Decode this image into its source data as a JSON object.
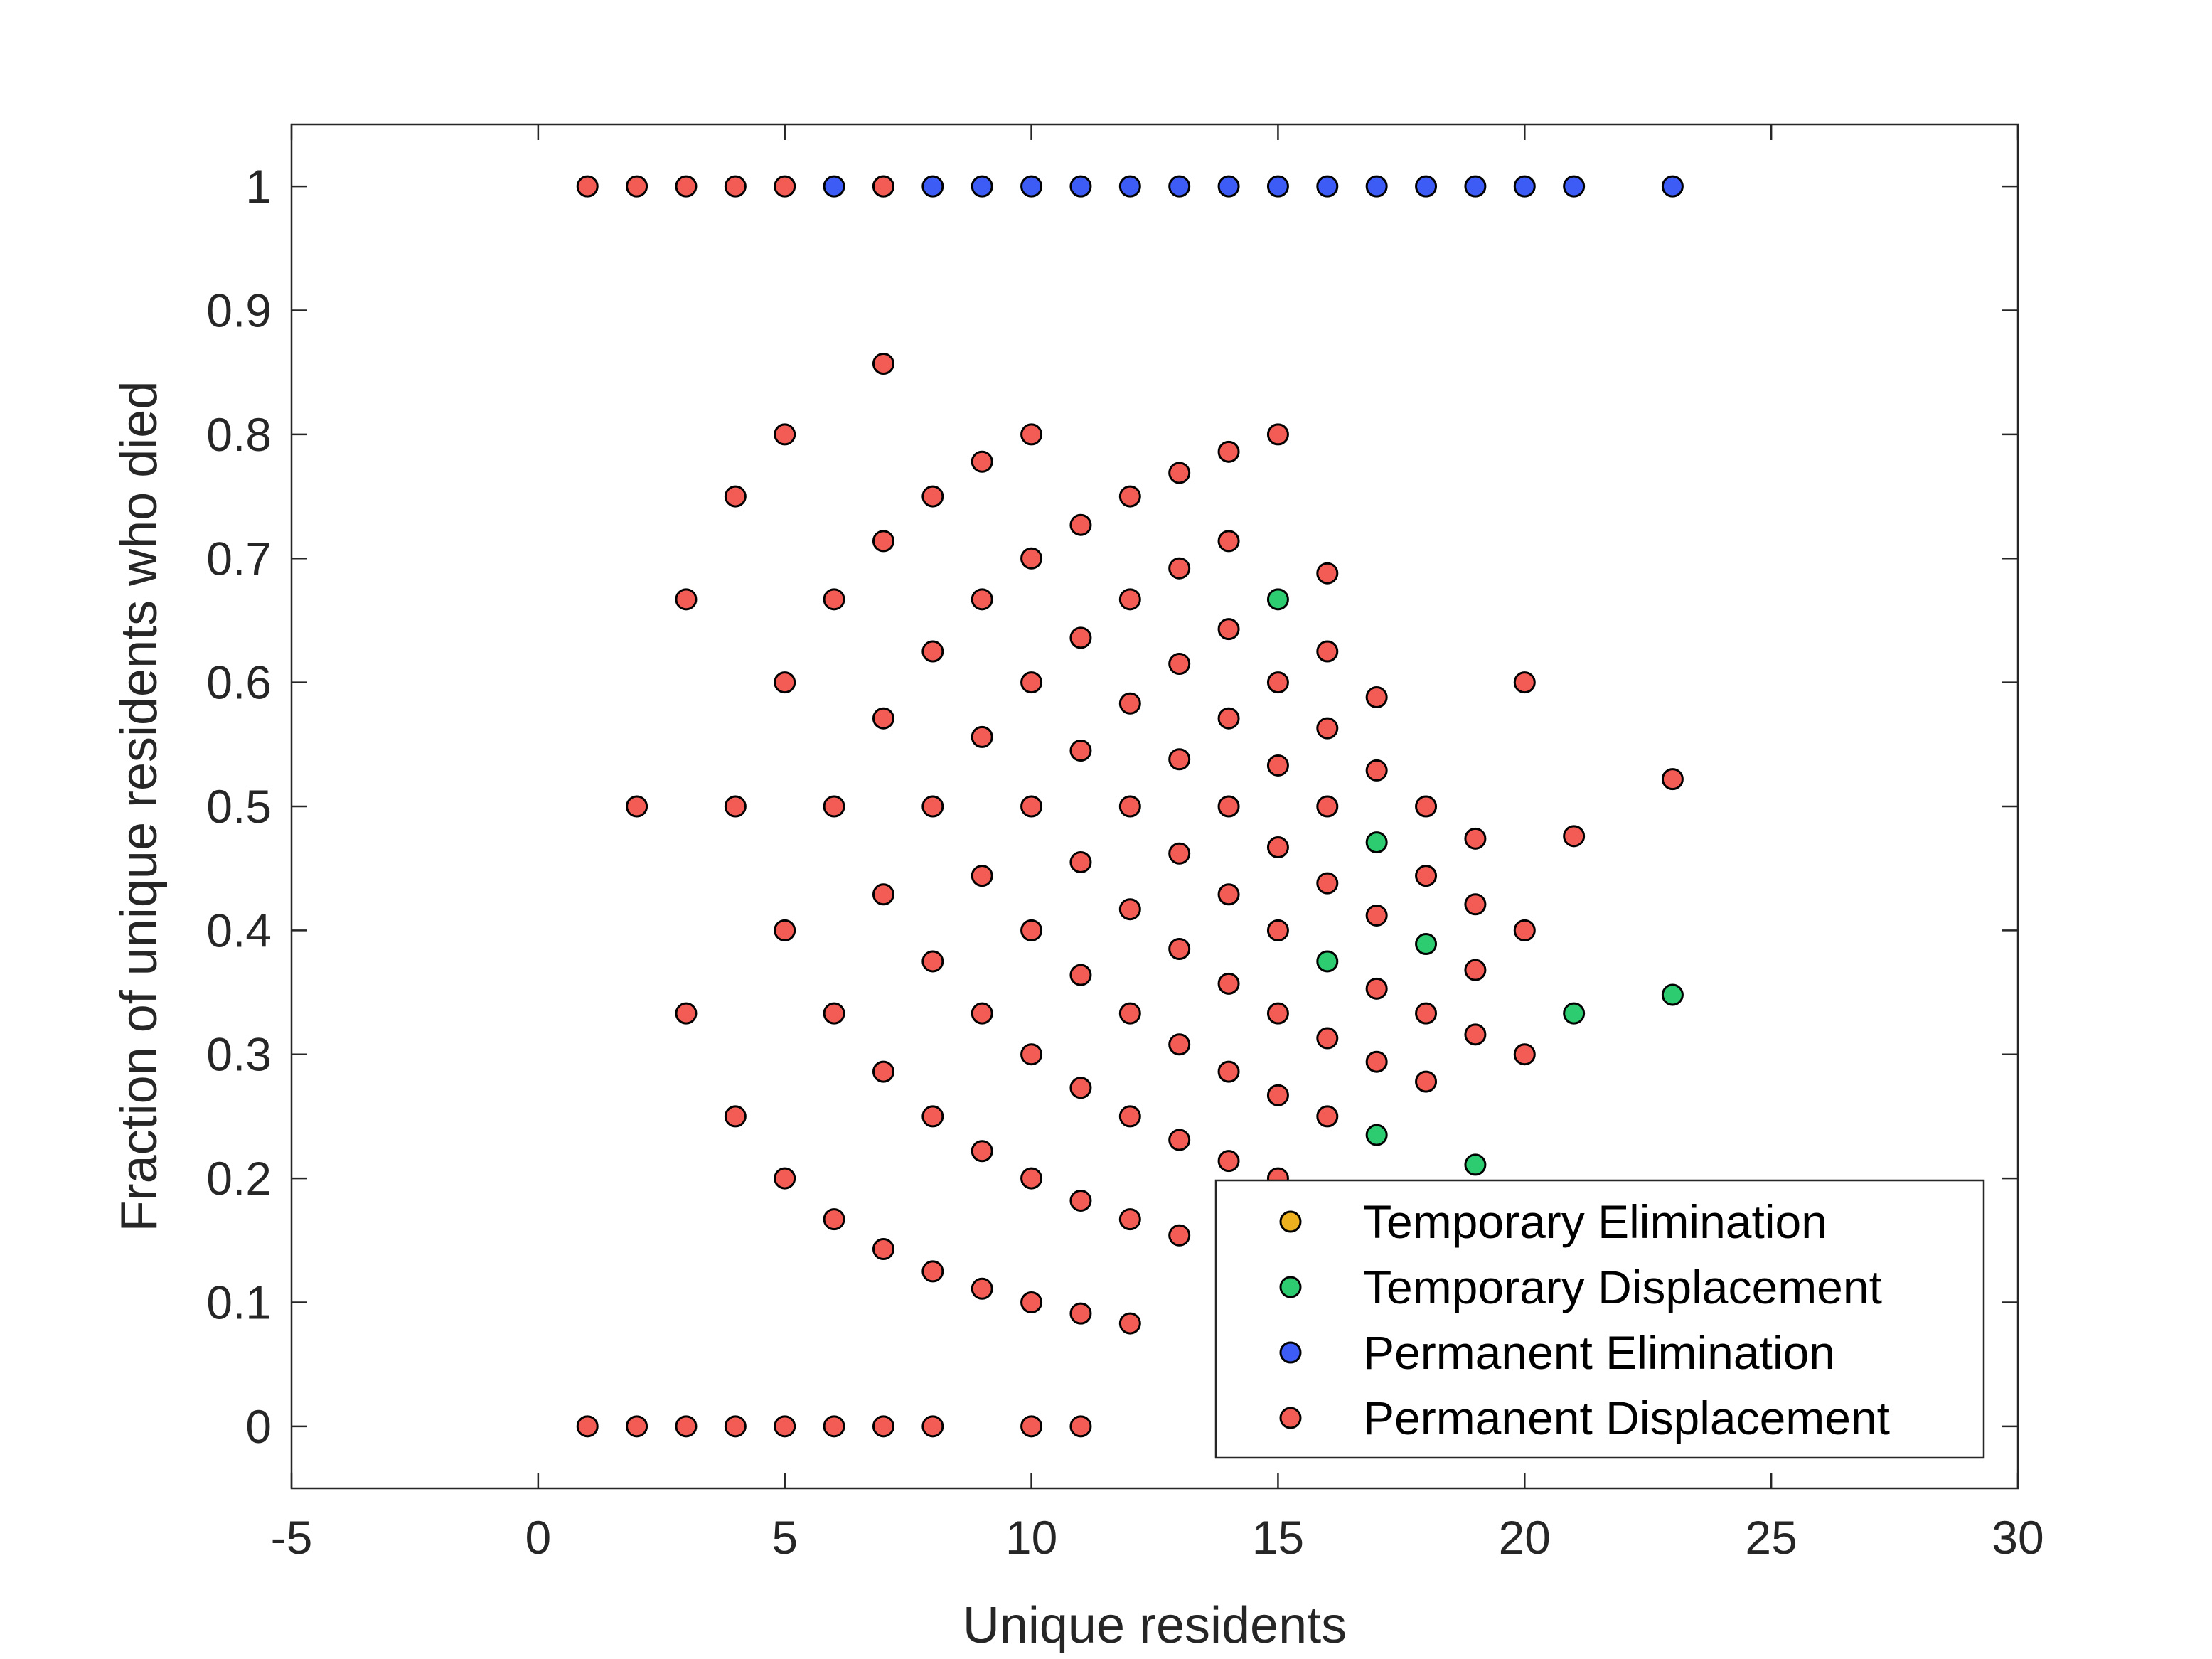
{
  "chart_data": {
    "type": "scatter",
    "xlabel": "Unique residents",
    "ylabel": "Fraction of unique residents who died",
    "xlim": [
      -5,
      30
    ],
    "ylim": [
      -0.05,
      1.05
    ],
    "xticks": [
      -5,
      0,
      5,
      10,
      15,
      20,
      25,
      30
    ],
    "yticks": [
      0,
      0.1,
      0.2,
      0.3,
      0.4,
      0.5,
      0.6,
      0.7,
      0.8,
      0.9,
      1
    ],
    "xtick_labels": [
      "-5",
      "0",
      "5",
      "10",
      "15",
      "20",
      "25",
      "30"
    ],
    "ytick_labels": [
      "0",
      "0.1",
      "0.2",
      "0.3",
      "0.4",
      "0.5",
      "0.6",
      "0.7",
      "0.8",
      "0.9",
      "1"
    ],
    "grid": false,
    "legend_position": "bottom-right",
    "series": [
      {
        "name": "Temporary Elimination",
        "color": "#EDB120",
        "points": []
      },
      {
        "name": "Temporary Displacement",
        "color": "#2ECC71",
        "points": [
          [
            15,
            0.667
          ],
          [
            16,
            0.375
          ],
          [
            17,
            0.471
          ],
          [
            17,
            0.235
          ],
          [
            18,
            0.389
          ],
          [
            19,
            0.211
          ],
          [
            21,
            0.333
          ],
          [
            23,
            0.348
          ]
        ]
      },
      {
        "name": "Permanent Elimination",
        "color": "#3D5CF5",
        "points": [
          [
            6,
            1
          ],
          [
            7,
            1
          ],
          [
            8,
            1
          ],
          [
            9,
            1
          ],
          [
            10,
            1
          ],
          [
            11,
            1
          ],
          [
            12,
            1
          ],
          [
            13,
            1
          ],
          [
            14,
            1
          ],
          [
            15,
            1
          ],
          [
            16,
            1
          ],
          [
            17,
            1
          ],
          [
            18,
            1
          ],
          [
            19,
            1
          ],
          [
            20,
            1
          ],
          [
            21,
            1
          ],
          [
            23,
            1
          ]
        ]
      },
      {
        "name": "Permanent Displacement",
        "color": "#F25C54",
        "points": [
          [
            1,
            1
          ],
          [
            2,
            1
          ],
          [
            3,
            1
          ],
          [
            4,
            1
          ],
          [
            5,
            1
          ],
          [
            7,
            1
          ],
          [
            1,
            0
          ],
          [
            2,
            0
          ],
          [
            3,
            0
          ],
          [
            4,
            0
          ],
          [
            5,
            0
          ],
          [
            6,
            0
          ],
          [
            7,
            0
          ],
          [
            8,
            0
          ],
          [
            10,
            0
          ],
          [
            11,
            0
          ],
          [
            2,
            0.5
          ],
          [
            3,
            0.667
          ],
          [
            3,
            0.333
          ],
          [
            4,
            0.75
          ],
          [
            4,
            0.5
          ],
          [
            4,
            0.25
          ],
          [
            5,
            0.8
          ],
          [
            5,
            0.6
          ],
          [
            5,
            0.4
          ],
          [
            5,
            0.2
          ],
          [
            6,
            0.667
          ],
          [
            6,
            0.5
          ],
          [
            6,
            0.333
          ],
          [
            6,
            0.167
          ],
          [
            7,
            0.857
          ],
          [
            7,
            0.714
          ],
          [
            7,
            0.571
          ],
          [
            7,
            0.429
          ],
          [
            7,
            0.286
          ],
          [
            7,
            0.143
          ],
          [
            8,
            0.75
          ],
          [
            8,
            0.625
          ],
          [
            8,
            0.5
          ],
          [
            8,
            0.375
          ],
          [
            8,
            0.25
          ],
          [
            8,
            0.125
          ],
          [
            9,
            0.778
          ],
          [
            9,
            0.667
          ],
          [
            9,
            0.556
          ],
          [
            9,
            0.444
          ],
          [
            9,
            0.333
          ],
          [
            9,
            0.222
          ],
          [
            9,
            0.111
          ],
          [
            10,
            0.8
          ],
          [
            10,
            0.7
          ],
          [
            10,
            0.6
          ],
          [
            10,
            0.5
          ],
          [
            10,
            0.4
          ],
          [
            10,
            0.3
          ],
          [
            10,
            0.2
          ],
          [
            10,
            0.1
          ],
          [
            11,
            0.727
          ],
          [
            11,
            0.636
          ],
          [
            11,
            0.545
          ],
          [
            11,
            0.455
          ],
          [
            11,
            0.364
          ],
          [
            11,
            0.273
          ],
          [
            11,
            0.182
          ],
          [
            11,
            0.091
          ],
          [
            12,
            0.75
          ],
          [
            12,
            0.667
          ],
          [
            12,
            0.583
          ],
          [
            12,
            0.5
          ],
          [
            12,
            0.417
          ],
          [
            12,
            0.333
          ],
          [
            12,
            0.25
          ],
          [
            12,
            0.167
          ],
          [
            12,
            0.083
          ],
          [
            13,
            0.769
          ],
          [
            13,
            0.692
          ],
          [
            13,
            0.615
          ],
          [
            13,
            0.538
          ],
          [
            13,
            0.462
          ],
          [
            13,
            0.385
          ],
          [
            13,
            0.308
          ],
          [
            13,
            0.231
          ],
          [
            13,
            0.154
          ],
          [
            14,
            0.786
          ],
          [
            14,
            0.714
          ],
          [
            14,
            0.643
          ],
          [
            14,
            0.571
          ],
          [
            14,
            0.5
          ],
          [
            14,
            0.429
          ],
          [
            14,
            0.357
          ],
          [
            14,
            0.286
          ],
          [
            14,
            0.214
          ],
          [
            15,
            0.8
          ],
          [
            15,
            0.6
          ],
          [
            15,
            0.533
          ],
          [
            15,
            0.467
          ],
          [
            15,
            0.4
          ],
          [
            15,
            0.333
          ],
          [
            15,
            0.267
          ],
          [
            15,
            0.2
          ],
          [
            16,
            0.688
          ],
          [
            16,
            0.625
          ],
          [
            16,
            0.563
          ],
          [
            16,
            0.5
          ],
          [
            16,
            0.438
          ],
          [
            16,
            0.313
          ],
          [
            16,
            0.25
          ],
          [
            17,
            0.588
          ],
          [
            17,
            0.529
          ],
          [
            17,
            0.412
          ],
          [
            17,
            0.353
          ],
          [
            17,
            0.294
          ],
          [
            18,
            0.5
          ],
          [
            18,
            0.444
          ],
          [
            18,
            0.333
          ],
          [
            18,
            0.278
          ],
          [
            19,
            0.474
          ],
          [
            19,
            0.421
          ],
          [
            19,
            0.368
          ],
          [
            19,
            0.316
          ],
          [
            20,
            0.6
          ],
          [
            20,
            0.4
          ],
          [
            20,
            0.3
          ],
          [
            21,
            0.476
          ],
          [
            23,
            0.522
          ]
        ]
      }
    ]
  }
}
